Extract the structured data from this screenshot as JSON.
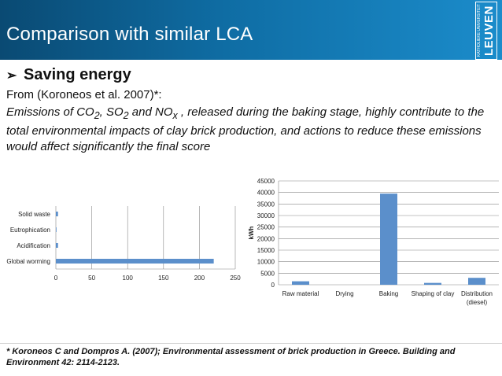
{
  "header": {
    "title": "Comparison with similar LCA",
    "logo_sub": "KATHOLIEKE UNIVERSITEIT",
    "logo_main": "LEUVEN"
  },
  "content": {
    "section_title": "Saving energy",
    "from_text": "From (Koroneos et al. 2007)*:",
    "desc_1": "Emissions of CO",
    "desc_sub1": "2",
    "desc_2": ", SO",
    "desc_sub2": "2",
    "desc_3": " and NO",
    "desc_sub3": "x",
    "desc_4": " , released during the baking stage,  highly contribute to the total environmental impacts of clay brick production, and actions to reduce  these emissions would affect significantly the final score"
  },
  "footer": {
    "citation": "* Koroneos C and Dompros A. (2007); Environmental assessment of brick production in Greece. Building and Environment 42: 2114-2123."
  },
  "colors": {
    "bar": "#5b8fcb",
    "grid": "#888888"
  },
  "chart_data": [
    {
      "type": "bar",
      "orientation": "horizontal",
      "categories": [
        "Solid waste",
        "Eutrophication",
        "Acidification",
        "Global worming"
      ],
      "values": [
        3,
        0.5,
        3,
        220
      ],
      "xlim": [
        0,
        250
      ],
      "xticks": [
        0,
        50,
        100,
        150,
        200,
        250
      ],
      "grid": true
    },
    {
      "type": "bar",
      "categories": [
        "Raw material",
        "Drying",
        "Baking",
        "Shaping of clay",
        "Distribution (diesel)"
      ],
      "values": [
        1500,
        0,
        39500,
        800,
        3000
      ],
      "ylabel": "kWh",
      "ylim": [
        0,
        45000
      ],
      "yticks": [
        0,
        5000,
        10000,
        15000,
        20000,
        25000,
        30000,
        35000,
        40000,
        45000
      ],
      "grid": true
    }
  ]
}
